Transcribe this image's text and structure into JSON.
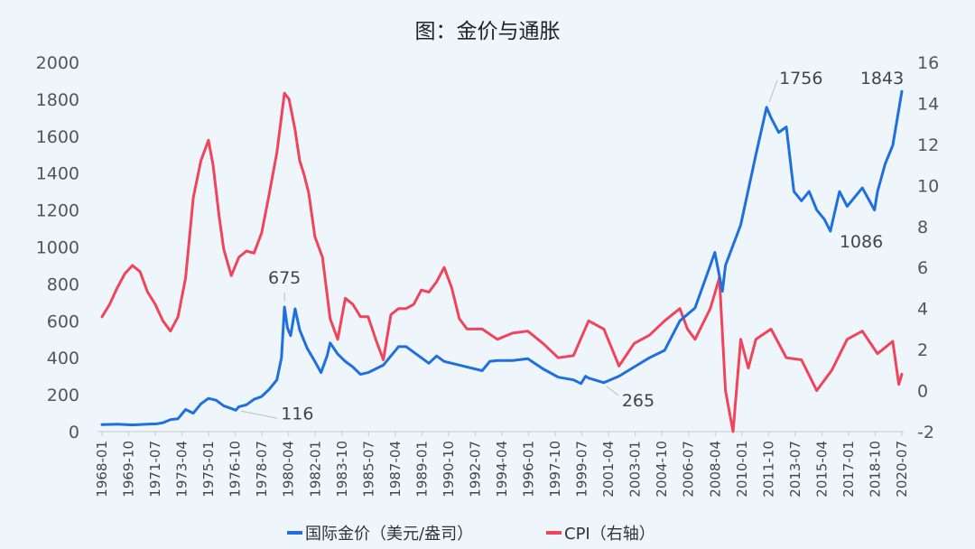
{
  "chart_data": {
    "type": "line",
    "title": "图：金价与通胀",
    "left_axis": {
      "min": 0,
      "max": 2000,
      "step": 200,
      "ticks": [
        "0",
        "200",
        "400",
        "600",
        "800",
        "1000",
        "1200",
        "1400",
        "1600",
        "1800",
        "2000"
      ]
    },
    "right_axis": {
      "min": -2,
      "max": 16,
      "step": 2,
      "ticks": [
        "-2",
        "0",
        "2",
        "4",
        "6",
        "8",
        "10",
        "12",
        "14",
        "16"
      ]
    },
    "x_ticks": [
      "1968-01",
      "1969-10",
      "1971-07",
      "1973-04",
      "1975-01",
      "1976-10",
      "1978-07",
      "1980-04",
      "1982-01",
      "1983-10",
      "1985-07",
      "1987-04",
      "1989-01",
      "1990-10",
      "1992-07",
      "1994-04",
      "1996-01",
      "1997-10",
      "1999-07",
      "2001-04",
      "2003-01",
      "2004-10",
      "2006-07",
      "2008-04",
      "2010-01",
      "2011-10",
      "2013-07",
      "2015-04",
      "2017-01",
      "2018-10",
      "2020-07"
    ],
    "grid": false,
    "legend_position": "bottom",
    "series": [
      {
        "name": "国际金价（美元/盎司）",
        "axis": "left",
        "color": "#1f6fe0",
        "points": [
          [
            1968.0,
            38
          ],
          [
            1969.0,
            40
          ],
          [
            1970.0,
            36
          ],
          [
            1971.0,
            40
          ],
          [
            1971.6,
            42
          ],
          [
            1972.0,
            48
          ],
          [
            1972.5,
            65
          ],
          [
            1973.0,
            70
          ],
          [
            1973.5,
            120
          ],
          [
            1974.0,
            100
          ],
          [
            1974.5,
            150
          ],
          [
            1975.0,
            180
          ],
          [
            1975.5,
            170
          ],
          [
            1976.0,
            140
          ],
          [
            1976.5,
            125
          ],
          [
            1976.8,
            116
          ],
          [
            1977.0,
            135
          ],
          [
            1977.5,
            145
          ],
          [
            1978.0,
            175
          ],
          [
            1978.5,
            190
          ],
          [
            1979.0,
            230
          ],
          [
            1979.5,
            280
          ],
          [
            1979.8,
            400
          ],
          [
            1980.0,
            675
          ],
          [
            1980.2,
            560
          ],
          [
            1980.4,
            520
          ],
          [
            1980.7,
            665
          ],
          [
            1981.0,
            550
          ],
          [
            1981.5,
            450
          ],
          [
            1982.0,
            380
          ],
          [
            1982.4,
            320
          ],
          [
            1982.8,
            410
          ],
          [
            1983.0,
            480
          ],
          [
            1983.5,
            420
          ],
          [
            1984.0,
            380
          ],
          [
            1984.5,
            350
          ],
          [
            1985.0,
            310
          ],
          [
            1985.5,
            320
          ],
          [
            1986.0,
            340
          ],
          [
            1986.5,
            360
          ],
          [
            1987.0,
            410
          ],
          [
            1987.5,
            460
          ],
          [
            1988.0,
            460
          ],
          [
            1988.5,
            430
          ],
          [
            1989.0,
            400
          ],
          [
            1989.5,
            370
          ],
          [
            1990.0,
            410
          ],
          [
            1990.5,
            380
          ],
          [
            1991.0,
            370
          ],
          [
            1992.0,
            350
          ],
          [
            1993.0,
            330
          ],
          [
            1993.5,
            380
          ],
          [
            1994.0,
            385
          ],
          [
            1995.0,
            385
          ],
          [
            1996.0,
            395
          ],
          [
            1997.0,
            340
          ],
          [
            1998.0,
            295
          ],
          [
            1999.0,
            280
          ],
          [
            1999.5,
            260
          ],
          [
            1999.8,
            300
          ],
          [
            2000.0,
            290
          ],
          [
            2001.0,
            265
          ],
          [
            2002.0,
            300
          ],
          [
            2003.0,
            350
          ],
          [
            2004.0,
            400
          ],
          [
            2005.0,
            440
          ],
          [
            2006.0,
            600
          ],
          [
            2007.0,
            670
          ],
          [
            2008.0,
            900
          ],
          [
            2008.3,
            970
          ],
          [
            2008.8,
            760
          ],
          [
            2009.0,
            900
          ],
          [
            2010.0,
            1120
          ],
          [
            2011.0,
            1500
          ],
          [
            2011.7,
            1756
          ],
          [
            2012.0,
            1700
          ],
          [
            2012.5,
            1620
          ],
          [
            2013.0,
            1650
          ],
          [
            2013.5,
            1300
          ],
          [
            2014.0,
            1250
          ],
          [
            2014.5,
            1300
          ],
          [
            2015.0,
            1200
          ],
          [
            2015.5,
            1150
          ],
          [
            2015.9,
            1086
          ],
          [
            2016.5,
            1300
          ],
          [
            2017.0,
            1220
          ],
          [
            2018.0,
            1320
          ],
          [
            2018.8,
            1200
          ],
          [
            2019.0,
            1300
          ],
          [
            2019.5,
            1450
          ],
          [
            2020.0,
            1550
          ],
          [
            2020.6,
            1843
          ]
        ]
      },
      {
        "name": "CPI（右轴）",
        "axis": "right",
        "color": "#f0445a",
        "points": [
          [
            1968.0,
            3.6
          ],
          [
            1968.5,
            4.2
          ],
          [
            1969.0,
            5.0
          ],
          [
            1969.5,
            5.7
          ],
          [
            1970.0,
            6.1
          ],
          [
            1970.5,
            5.8
          ],
          [
            1971.0,
            4.8
          ],
          [
            1971.5,
            4.2
          ],
          [
            1972.0,
            3.4
          ],
          [
            1972.5,
            2.9
          ],
          [
            1973.0,
            3.6
          ],
          [
            1973.5,
            5.5
          ],
          [
            1974.0,
            9.4
          ],
          [
            1974.5,
            11.2
          ],
          [
            1975.0,
            12.2
          ],
          [
            1975.3,
            11.0
          ],
          [
            1975.7,
            8.5
          ],
          [
            1976.0,
            6.9
          ],
          [
            1976.5,
            5.6
          ],
          [
            1977.0,
            6.5
          ],
          [
            1977.5,
            6.8
          ],
          [
            1978.0,
            6.7
          ],
          [
            1978.5,
            7.7
          ],
          [
            1979.0,
            9.6
          ],
          [
            1979.5,
            11.6
          ],
          [
            1980.0,
            14.5
          ],
          [
            1980.3,
            14.2
          ],
          [
            1980.7,
            12.7
          ],
          [
            1981.0,
            11.2
          ],
          [
            1981.3,
            10.5
          ],
          [
            1981.6,
            9.6
          ],
          [
            1982.0,
            7.5
          ],
          [
            1982.5,
            6.5
          ],
          [
            1983.0,
            3.5
          ],
          [
            1983.5,
            2.5
          ],
          [
            1984.0,
            4.5
          ],
          [
            1984.5,
            4.2
          ],
          [
            1985.0,
            3.6
          ],
          [
            1985.5,
            3.6
          ],
          [
            1986.0,
            2.5
          ],
          [
            1986.5,
            1.5
          ],
          [
            1987.0,
            3.7
          ],
          [
            1987.5,
            4.0
          ],
          [
            1988.0,
            4.0
          ],
          [
            1988.5,
            4.2
          ],
          [
            1989.0,
            4.9
          ],
          [
            1989.5,
            4.8
          ],
          [
            1990.0,
            5.3
          ],
          [
            1990.5,
            6.0
          ],
          [
            1991.0,
            5.0
          ],
          [
            1991.5,
            3.5
          ],
          [
            1992.0,
            3.0
          ],
          [
            1993.0,
            3.0
          ],
          [
            1994.0,
            2.5
          ],
          [
            1995.0,
            2.8
          ],
          [
            1996.0,
            2.9
          ],
          [
            1997.0,
            2.3
          ],
          [
            1998.0,
            1.6
          ],
          [
            1999.0,
            1.7
          ],
          [
            2000.0,
            3.4
          ],
          [
            2001.0,
            3.0
          ],
          [
            2002.0,
            1.2
          ],
          [
            2003.0,
            2.3
          ],
          [
            2004.0,
            2.7
          ],
          [
            2005.0,
            3.4
          ],
          [
            2006.0,
            4.0
          ],
          [
            2006.5,
            3.0
          ],
          [
            2007.0,
            2.5
          ],
          [
            2008.0,
            4.0
          ],
          [
            2008.6,
            5.5
          ],
          [
            2009.0,
            0.0
          ],
          [
            2009.5,
            -2.0
          ],
          [
            2010.0,
            2.5
          ],
          [
            2010.5,
            1.1
          ],
          [
            2011.0,
            2.5
          ],
          [
            2012.0,
            3.0
          ],
          [
            2013.0,
            1.6
          ],
          [
            2014.0,
            1.5
          ],
          [
            2015.0,
            0.0
          ],
          [
            2016.0,
            1.0
          ],
          [
            2017.0,
            2.5
          ],
          [
            2018.0,
            2.9
          ],
          [
            2019.0,
            1.8
          ],
          [
            2020.0,
            2.4
          ],
          [
            2020.4,
            0.3
          ],
          [
            2020.6,
            0.8
          ]
        ]
      }
    ],
    "annotations": [
      {
        "label": "675",
        "series": 0,
        "x": 1980.0,
        "y": 675
      },
      {
        "label": "116",
        "series": 0,
        "x": 1976.8,
        "y": 116
      },
      {
        "label": "265",
        "series": 0,
        "x": 2001.0,
        "y": 265
      },
      {
        "label": "1756",
        "series": 0,
        "x": 2011.7,
        "y": 1756
      },
      {
        "label": "1086",
        "series": 0,
        "x": 2015.9,
        "y": 1086
      },
      {
        "label": "1843",
        "series": 0,
        "x": 2020.6,
        "y": 1843
      }
    ]
  }
}
